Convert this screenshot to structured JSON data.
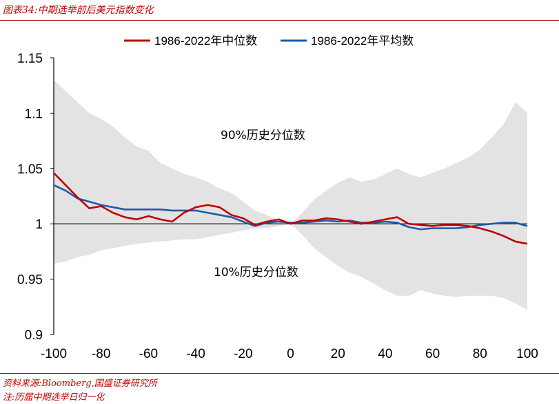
{
  "header": {
    "title": "图表34:中期选举前后美元指数变化"
  },
  "footer": {
    "source": "资料来源:Bloomberg,国盛证券研究所",
    "note": "注:历届中期选举日归一化"
  },
  "colors": {
    "median": "#c00000",
    "mean": "#1f5aa6",
    "band": "#e3e3e3",
    "title": "#c00000"
  },
  "chart_data": {
    "type": "line",
    "xlim": [
      -100,
      100
    ],
    "ylim": [
      0.9,
      1.15
    ],
    "x_ticks": [
      "-100",
      "-80",
      "-60",
      "-40",
      "-20",
      "0",
      "20",
      "40",
      "60",
      "80",
      "100"
    ],
    "y_ticks": [
      "1.15",
      "1.1",
      "1.05",
      "1",
      "0.95",
      "0.9"
    ],
    "legend_position": "top-center",
    "band_labels": {
      "upper": "90%历史分位数",
      "lower": "10%历史分位数"
    },
    "x": [
      -100,
      -95,
      -90,
      -85,
      -80,
      -75,
      -70,
      -65,
      -60,
      -55,
      -50,
      -45,
      -40,
      -35,
      -30,
      -25,
      -20,
      -15,
      -10,
      -5,
      0,
      5,
      10,
      15,
      20,
      25,
      30,
      35,
      40,
      45,
      50,
      55,
      60,
      65,
      70,
      75,
      80,
      85,
      90,
      95,
      100
    ],
    "series": [
      {
        "name": "1986-2022年中位数",
        "values": [
          1.046,
          1.035,
          1.024,
          1.014,
          1.016,
          1.01,
          1.006,
          1.004,
          1.007,
          1.004,
          1.002,
          1.01,
          1.015,
          1.017,
          1.015,
          1.008,
          1.005,
          0.999,
          1.002,
          1.004,
          1.0,
          1.003,
          1.003,
          1.005,
          1.004,
          1.002,
          1.0,
          1.002,
          1.004,
          1.006,
          1.0,
          0.999,
          0.998,
          0.999,
          0.999,
          0.998,
          0.996,
          0.993,
          0.989,
          0.984,
          0.982
        ]
      },
      {
        "name": "1986-2022年平均数",
        "values": [
          1.035,
          1.03,
          1.023,
          1.02,
          1.017,
          1.015,
          1.013,
          1.013,
          1.013,
          1.013,
          1.012,
          1.012,
          1.012,
          1.01,
          1.008,
          1.006,
          1.002,
          0.998,
          1.001,
          1.002,
          1.001,
          1.001,
          1.002,
          1.003,
          1.002,
          1.003,
          1.001,
          1.001,
          1.002,
          1.001,
          0.997,
          0.995,
          0.996,
          0.996,
          0.996,
          0.997,
          0.999,
          1.0,
          1.001,
          1.001,
          0.998
        ]
      },
      {
        "name": "90%历史分位数",
        "values": [
          1.13,
          1.12,
          1.11,
          1.1,
          1.095,
          1.088,
          1.078,
          1.07,
          1.066,
          1.055,
          1.05,
          1.045,
          1.042,
          1.038,
          1.032,
          1.028,
          1.02,
          1.012,
          1.008,
          1.003,
          1.0,
          1.01,
          1.022,
          1.03,
          1.037,
          1.042,
          1.038,
          1.04,
          1.045,
          1.05,
          1.045,
          1.042,
          1.046,
          1.05,
          1.055,
          1.06,
          1.067,
          1.078,
          1.09,
          1.11,
          1.1
        ]
      },
      {
        "name": "10%历史分位数",
        "values": [
          0.964,
          0.966,
          0.97,
          0.972,
          0.976,
          0.978,
          0.98,
          0.982,
          0.983,
          0.984,
          0.985,
          0.986,
          0.986,
          0.988,
          0.99,
          0.992,
          0.994,
          0.996,
          0.996,
          0.998,
          1.0,
          0.99,
          0.978,
          0.97,
          0.962,
          0.956,
          0.952,
          0.946,
          0.94,
          0.935,
          0.935,
          0.94,
          0.937,
          0.935,
          0.934,
          0.935,
          0.935,
          0.935,
          0.933,
          0.928,
          0.922
        ]
      }
    ]
  }
}
